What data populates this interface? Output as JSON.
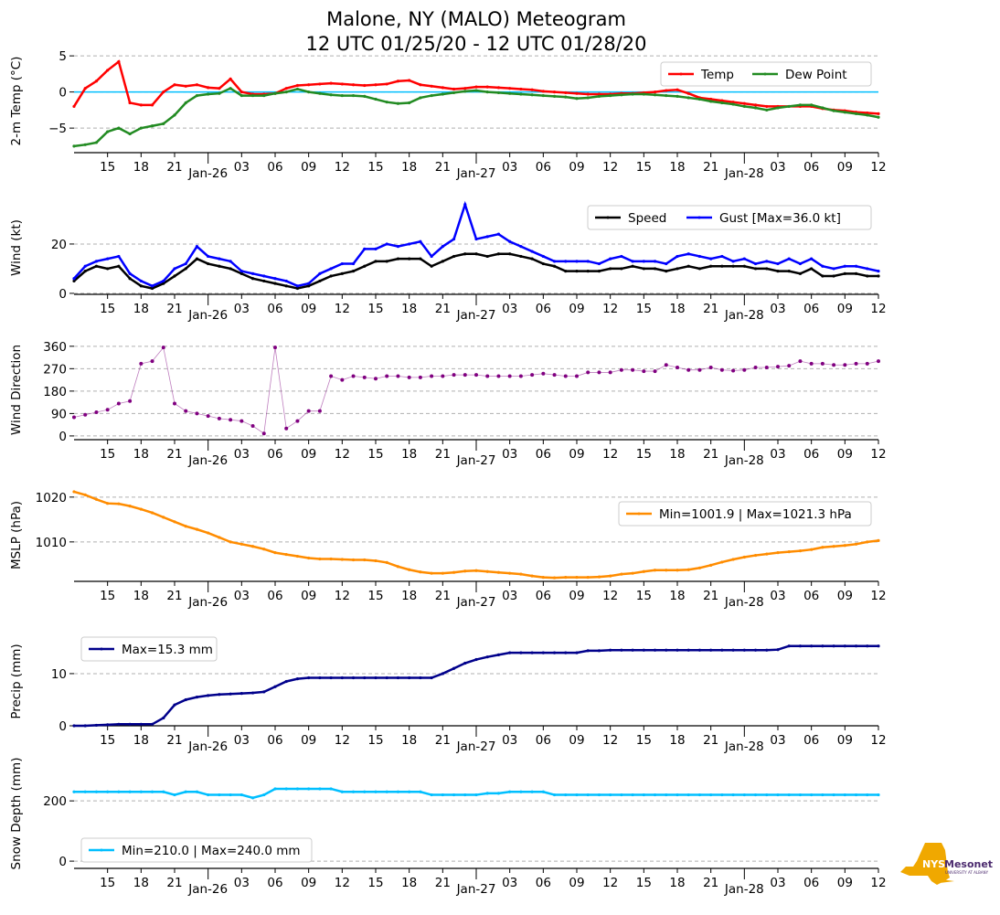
{
  "chart_data": {
    "type": "line",
    "title": "Malone, NY (MALO) Meteogram",
    "subtitle": "12 UTC 01/25/20 - 12 UTC 01/28/20",
    "x_unit": "hours since 12 UTC 01/25/20",
    "xlim": [
      0,
      72
    ],
    "x_ticks": [
      {
        "h": 3,
        "label": "15"
      },
      {
        "h": 6,
        "label": "18"
      },
      {
        "h": 9,
        "label": "21"
      },
      {
        "h": 12,
        "label": "Jan-26",
        "major": true
      },
      {
        "h": 15,
        "label": "03"
      },
      {
        "h": 18,
        "label": "06"
      },
      {
        "h": 21,
        "label": "09"
      },
      {
        "h": 24,
        "label": "12"
      },
      {
        "h": 27,
        "label": "15"
      },
      {
        "h": 30,
        "label": "18"
      },
      {
        "h": 33,
        "label": "21"
      },
      {
        "h": 36,
        "label": "Jan-27",
        "major": true
      },
      {
        "h": 39,
        "label": "03"
      },
      {
        "h": 42,
        "label": "06"
      },
      {
        "h": 45,
        "label": "09"
      },
      {
        "h": 48,
        "label": "12"
      },
      {
        "h": 51,
        "label": "15"
      },
      {
        "h": 54,
        "label": "18"
      },
      {
        "h": 57,
        "label": "21"
      },
      {
        "h": 60,
        "label": "Jan-28",
        "major": true
      },
      {
        "h": 63,
        "label": "03"
      },
      {
        "h": 66,
        "label": "06"
      },
      {
        "h": 69,
        "label": "09"
      },
      {
        "h": 72,
        "label": "12"
      }
    ],
    "panels": [
      {
        "ylabel": "2-m Temp ($^\\circ$C)",
        "ylabel_display": "2-m Temp (°C)",
        "ylim": [
          -8.4,
          5.9
        ],
        "yticks": [
          {
            "v": 5,
            "label": "5"
          },
          {
            "v": 0,
            "label": "0"
          },
          {
            "v": -5,
            "label": "−5"
          }
        ],
        "refline": {
          "value": 0,
          "color": "#00bfff"
        },
        "legend": {
          "placement": "top-right",
          "cols": 2
        },
        "series": [
          {
            "name": "Temp",
            "color": "#ff0000",
            "values": [
              -2,
              0.5,
              1.5,
              3,
              4.2,
              -1.5,
              -1.8,
              -1.8,
              0,
              1,
              0.8,
              1,
              0.6,
              0.5,
              1.8,
              0,
              -0.3,
              -0.3,
              -0.2,
              0.5,
              0.9,
              1,
              1.1,
              1.2,
              1.1,
              1,
              0.9,
              1,
              1.1,
              1.5,
              1.6,
              1,
              0.8,
              0.6,
              0.4,
              0.5,
              0.7,
              0.7,
              0.6,
              0.5,
              0.4,
              0.3,
              0.1,
              0,
              -0.1,
              -0.2,
              -0.3,
              -0.3,
              -0.3,
              -0.2,
              -0.2,
              -0.1,
              0,
              0.2,
              0.3,
              -0.2,
              -0.8,
              -1,
              -1.2,
              -1.4,
              -1.6,
              -1.8,
              -2,
              -2,
              -2,
              -2,
              -2,
              -2.3,
              -2.5,
              -2.6,
              -2.8,
              -2.9,
              -3
            ]
          },
          {
            "name": "Dew Point",
            "color": "#228b22",
            "values": [
              -7.5,
              -7.3,
              -7,
              -5.5,
              -5,
              -5.8,
              -5,
              -4.7,
              -4.4,
              -3.2,
              -1.5,
              -0.5,
              -0.3,
              -0.2,
              0.5,
              -0.5,
              -0.5,
              -0.5,
              -0.2,
              0,
              0.4,
              0,
              -0.2,
              -0.4,
              -0.5,
              -0.5,
              -0.6,
              -1,
              -1.4,
              -1.6,
              -1.5,
              -0.8,
              -0.5,
              -0.3,
              -0.1,
              0.1,
              0.2,
              0,
              -0.1,
              -0.2,
              -0.3,
              -0.4,
              -0.5,
              -0.6,
              -0.7,
              -0.9,
              -0.8,
              -0.6,
              -0.5,
              -0.4,
              -0.3,
              -0.3,
              -0.4,
              -0.5,
              -0.6,
              -0.8,
              -1,
              -1.3,
              -1.5,
              -1.7,
              -2,
              -2.2,
              -2.5,
              -2.2,
              -2,
              -1.8,
              -1.8,
              -2.2,
              -2.6,
              -2.8,
              -3,
              -3.2,
              -3.5
            ]
          }
        ]
      },
      {
        "ylabel": "Wind (kt)",
        "ylim": [
          -0.4,
          37.4
        ],
        "yticks": [
          {
            "v": 20,
            "label": "20"
          },
          {
            "v": 0,
            "label": "0"
          }
        ],
        "legend": {
          "placement": "top-right",
          "cols": 2
        },
        "series": [
          {
            "name": "Speed",
            "color": "#000000",
            "values": [
              5,
              9,
              11,
              10,
              11,
              6,
              3,
              2,
              4,
              7,
              10,
              14,
              12,
              11,
              10,
              8,
              6,
              5,
              4,
              3,
              2,
              3,
              5,
              7,
              8,
              9,
              11,
              13,
              13,
              14,
              14,
              14,
              11,
              13,
              15,
              16,
              16,
              15,
              16,
              16,
              15,
              14,
              12,
              11,
              9,
              9,
              9,
              9,
              10,
              10,
              11,
              10,
              10,
              9,
              10,
              11,
              10,
              11,
              11,
              11,
              11,
              10,
              10,
              9,
              9,
              8,
              10,
              7,
              7,
              8,
              8,
              7,
              7
            ]
          },
          {
            "name": "Gust [Max=36.0 kt]",
            "color": "#0000ff",
            "values": [
              6,
              11,
              13,
              14,
              15,
              8,
              5,
              3,
              5,
              10,
              12,
              19,
              15,
              14,
              13,
              9,
              8,
              7,
              6,
              5,
              3,
              4,
              8,
              10,
              12,
              12,
              18,
              18,
              20,
              19,
              20,
              21,
              15,
              19,
              22,
              36,
              22,
              23,
              24,
              21,
              19,
              17,
              15,
              13,
              13,
              13,
              13,
              12,
              14,
              15,
              13,
              13,
              13,
              12,
              15,
              16,
              15,
              14,
              15,
              13,
              14,
              12,
              13,
              12,
              14,
              12,
              14,
              11,
              10,
              11,
              11,
              10,
              9
            ]
          }
        ]
      },
      {
        "ylabel": "Wind Direction",
        "ylim": [
          -15,
          385
        ],
        "yticks": [
          {
            "v": 360,
            "label": "360"
          },
          {
            "v": 270,
            "label": "270"
          },
          {
            "v": 180,
            "label": "180"
          },
          {
            "v": 90,
            "label": "90"
          },
          {
            "v": 0,
            "label": "0"
          }
        ],
        "series": [
          {
            "name": "Direction",
            "color": "#800080",
            "values": [
              75,
              85,
              95,
              105,
              130,
              140,
              290,
              300,
              355,
              130,
              100,
              90,
              80,
              70,
              65,
              60,
              40,
              10,
              355,
              30,
              60,
              100,
              100,
              240,
              225,
              240,
              235,
              230,
              240,
              240,
              235,
              235,
              240,
              240,
              245,
              245,
              245,
              240,
              240,
              240,
              240,
              245,
              250,
              245,
              240,
              240,
              255,
              255,
              255,
              265,
              265,
              260,
              260,
              285,
              275,
              265,
              265,
              275,
              265,
              262,
              265,
              275,
              275,
              278,
              282,
              300,
              290,
              290,
              285,
              285,
              290,
              290,
              300
            ]
          }
        ]
      },
      {
        "ylabel": "MSLP (hPa)",
        "ylim": [
          1001.2,
          1021.8
        ],
        "yticks": [
          {
            "v": 1020,
            "label": "1020"
          },
          {
            "v": 1010,
            "label": "1010"
          }
        ],
        "legend": {
          "placement": "top-right",
          "cols": 1
        },
        "series": [
          {
            "name": "Min=1001.9 | Max=1021.3 hPa",
            "color": "#ff8c00",
            "values": [
              1021.2,
              1020.5,
              1019.5,
              1018.6,
              1018.5,
              1018,
              1017.3,
              1016.5,
              1015.5,
              1014.5,
              1013.5,
              1012.8,
              1012,
              1011,
              1010,
              1009.5,
              1009,
              1008.4,
              1007.6,
              1007.2,
              1006.8,
              1006.4,
              1006.2,
              1006.2,
              1006.1,
              1006,
              1006,
              1005.8,
              1005.4,
              1004.5,
              1003.8,
              1003.3,
              1003,
              1003,
              1003.2,
              1003.5,
              1003.6,
              1003.4,
              1003.2,
              1003,
              1002.8,
              1002.4,
              1002.1,
              1002,
              1002.1,
              1002.1,
              1002.1,
              1002.2,
              1002.4,
              1002.8,
              1003,
              1003.4,
              1003.7,
              1003.7,
              1003.7,
              1003.8,
              1004.2,
              1004.8,
              1005.5,
              1006.1,
              1006.6,
              1007,
              1007.3,
              1007.6,
              1007.8,
              1008,
              1008.3,
              1008.8,
              1009,
              1009.2,
              1009.5,
              1010,
              1010.3
            ]
          }
        ]
      },
      {
        "ylabel": "Precip (mm)",
        "ylim": [
          0,
          17
        ],
        "yticks": [
          {
            "v": 10,
            "label": "10"
          },
          {
            "v": 0,
            "label": "0"
          }
        ],
        "legend": {
          "placement": "top-left",
          "cols": 1
        },
        "series": [
          {
            "name": "Max=15.3 mm",
            "color": "#00008b",
            "values": [
              0,
              0,
              0.1,
              0.2,
              0.3,
              0.3,
              0.3,
              0.3,
              1.5,
              4,
              5,
              5.5,
              5.8,
              6,
              6.1,
              6.2,
              6.3,
              6.5,
              7.5,
              8.5,
              9,
              9.2,
              9.2,
              9.2,
              9.2,
              9.2,
              9.2,
              9.2,
              9.2,
              9.2,
              9.2,
              9.2,
              9.2,
              10,
              11,
              12,
              12.7,
              13.2,
              13.6,
              14,
              14,
              14,
              14,
              14,
              14,
              14,
              14.4,
              14.4,
              14.5,
              14.5,
              14.5,
              14.5,
              14.5,
              14.5,
              14.5,
              14.5,
              14.5,
              14.5,
              14.5,
              14.5,
              14.5,
              14.5,
              14.5,
              14.6,
              15.3,
              15.3,
              15.3,
              15.3,
              15.3,
              15.3,
              15.3,
              15.3,
              15.3
            ]
          }
        ]
      },
      {
        "ylabel": "Snow Depth (mm)",
        "ylim": [
          -24,
          340
        ],
        "yticks": [
          {
            "v": 200,
            "label": "200"
          },
          {
            "v": 0,
            "label": "0"
          }
        ],
        "legend": {
          "placement": "bottom-left",
          "cols": 1
        },
        "series": [
          {
            "name": "Min=210.0 | Max=240.0 mm",
            "color": "#00bfff",
            "values": [
              230,
              230,
              230,
              230,
              230,
              230,
              230,
              230,
              230,
              220,
              230,
              230,
              220,
              220,
              220,
              220,
              210,
              220,
              240,
              240,
              240,
              240,
              240,
              240,
              230,
              230,
              230,
              230,
              230,
              230,
              230,
              230,
              220,
              220,
              220,
              220,
              220,
              225,
              225,
              230,
              230,
              230,
              230,
              220,
              220,
              220,
              220,
              220,
              220,
              220,
              220,
              220,
              220,
              220,
              220,
              220,
              220,
              220,
              220,
              220,
              220,
              220,
              220,
              220,
              220,
              220,
              220,
              220,
              220,
              220,
              220,
              220,
              220
            ]
          }
        ]
      }
    ]
  },
  "logo": {
    "text_main": "NYS Mesonet",
    "text_sub": "UNIVERSITY AT ALBANY",
    "gold": "#f0a800",
    "purple": "#4b2a6e"
  }
}
